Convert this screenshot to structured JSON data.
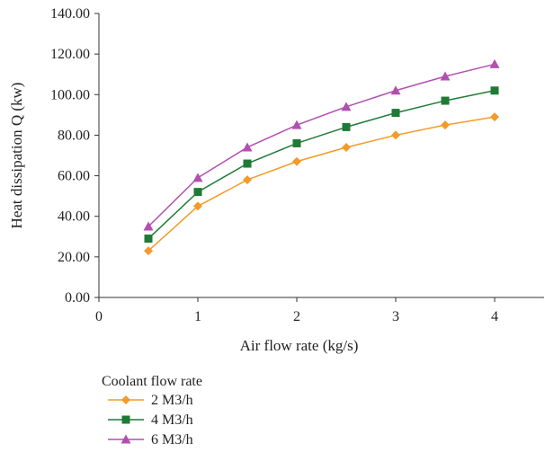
{
  "chart_data": {
    "type": "line",
    "xlabel": "Air flow rate (kg/s)",
    "ylabel": "Heat dissipation Q (kw)",
    "xlim": [
      0,
      4.5
    ],
    "ylim": [
      0,
      140
    ],
    "x_ticks": [
      0,
      1,
      2,
      3,
      4
    ],
    "x_tick_labels": [
      "0",
      "1",
      "2",
      "3",
      "4"
    ],
    "y_ticks": [
      0,
      20,
      40,
      60,
      80,
      100,
      120,
      140
    ],
    "y_tick_labels": [
      "0.00",
      "20.00",
      "40.00",
      "60.00",
      "80.00",
      "100.00",
      "120.00",
      "140.00"
    ],
    "grid": false,
    "legend_title": "Coolant flow rate",
    "legend_position": "bottom-left",
    "x": [
      0.5,
      1,
      1.5,
      2,
      2.5,
      3,
      3.5,
      4
    ],
    "series": [
      {
        "name": "2 M3/h",
        "color": "#f39a2b",
        "marker": "diamond",
        "values": [
          23,
          45,
          58,
          67,
          74,
          80,
          85,
          89
        ]
      },
      {
        "name": "4 M3/h",
        "color": "#1f7a36",
        "marker": "square",
        "values": [
          29,
          52,
          66,
          76,
          84,
          91,
          97,
          102
        ]
      },
      {
        "name": "6 M3/h",
        "color": "#b24fb0",
        "marker": "triangle",
        "values": [
          35,
          59,
          74,
          85,
          94,
          102,
          109,
          115
        ]
      }
    ]
  }
}
